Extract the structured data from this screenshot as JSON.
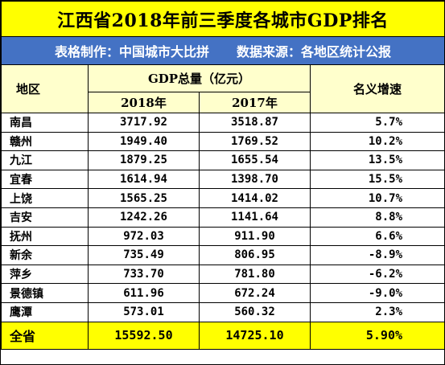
{
  "title": "江西省2018年前三季度各城市GDP排名",
  "subtitle": {
    "maker": "表格制作：中国城市大比拼",
    "source": "数据来源：各地区统计公报"
  },
  "headers": {
    "region": "地区",
    "gdp_total": "GDP总量（亿元）",
    "year_a": "2018年",
    "year_b": "2017年",
    "growth": "名义增速"
  },
  "rows": [
    {
      "name": "南昌",
      "v2018": "3717.92",
      "v2017": "3518.87",
      "growth": "5.7%"
    },
    {
      "name": "赣州",
      "v2018": "1949.40",
      "v2017": "1769.52",
      "growth": "10.2%"
    },
    {
      "name": "九江",
      "v2018": "1879.25",
      "v2017": "1655.54",
      "growth": "13.5%"
    },
    {
      "name": "宜春",
      "v2018": "1614.94",
      "v2017": "1398.70",
      "growth": "15.5%"
    },
    {
      "name": "上饶",
      "v2018": "1565.25",
      "v2017": "1414.02",
      "growth": "10.7%"
    },
    {
      "name": "吉安",
      "v2018": "1242.26",
      "v2017": "1141.64",
      "growth": "8.8%"
    },
    {
      "name": "抚州",
      "v2018": "972.03",
      "v2017": "911.90",
      "growth": "6.6%"
    },
    {
      "name": "新余",
      "v2018": "735.49",
      "v2017": "806.95",
      "growth": "-8.9%"
    },
    {
      "name": "萍乡",
      "v2018": "733.70",
      "v2017": "781.80",
      "growth": "-6.2%"
    },
    {
      "name": "景德镇",
      "v2018": "611.96",
      "v2017": "672.24",
      "growth": "-9.0%"
    },
    {
      "name": "鹰潭",
      "v2018": "573.01",
      "v2017": "560.32",
      "growth": "2.3%"
    }
  ],
  "total": {
    "name": "全省",
    "v2018": "15592.50",
    "v2017": "14725.10",
    "growth": "5.90%"
  },
  "colors": {
    "title_bg": "#ffff00",
    "subtitle_bg": "#4472c4",
    "header_bg": "#ffffcc",
    "total_bg": "#ffff00"
  }
}
